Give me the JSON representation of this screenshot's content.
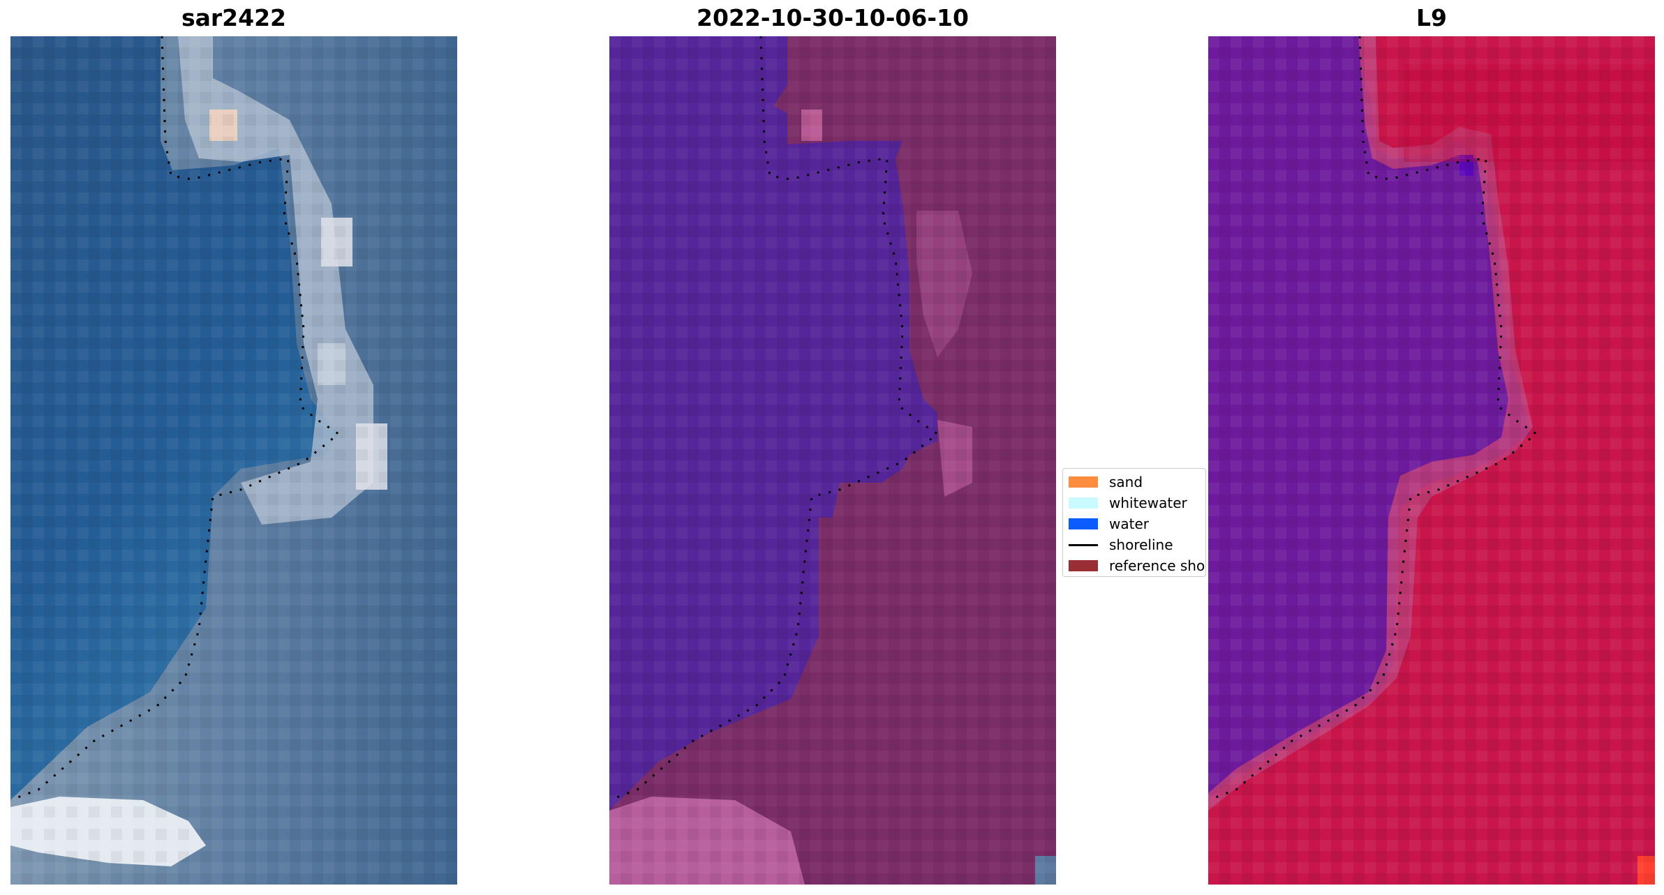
{
  "panels": [
    {
      "title": "sar2422",
      "kind": "rgb"
    },
    {
      "title": "2022-10-30-10-06-10",
      "kind": "classified"
    },
    {
      "title": "L9",
      "kind": "false-color"
    }
  ],
  "legend": {
    "items": [
      {
        "label": "sand",
        "type": "patch",
        "color": "#ff8c3f"
      },
      {
        "label": "whitewater",
        "type": "patch",
        "color": "#c8faff"
      },
      {
        "label": "water",
        "type": "patch",
        "color": "#0a5cff"
      },
      {
        "label": "shoreline",
        "type": "line",
        "color": "#000000"
      },
      {
        "label": "reference sho",
        "type": "patch",
        "color": "#992e34"
      }
    ]
  },
  "colors": {
    "rgb_sea": "#2c5f92",
    "rgb_land": "#8aa0b8",
    "class_water": "#55259a",
    "class_land": "#7a2d66",
    "l9_water": "#6e1a9c",
    "l9_land": "#c8154a"
  }
}
